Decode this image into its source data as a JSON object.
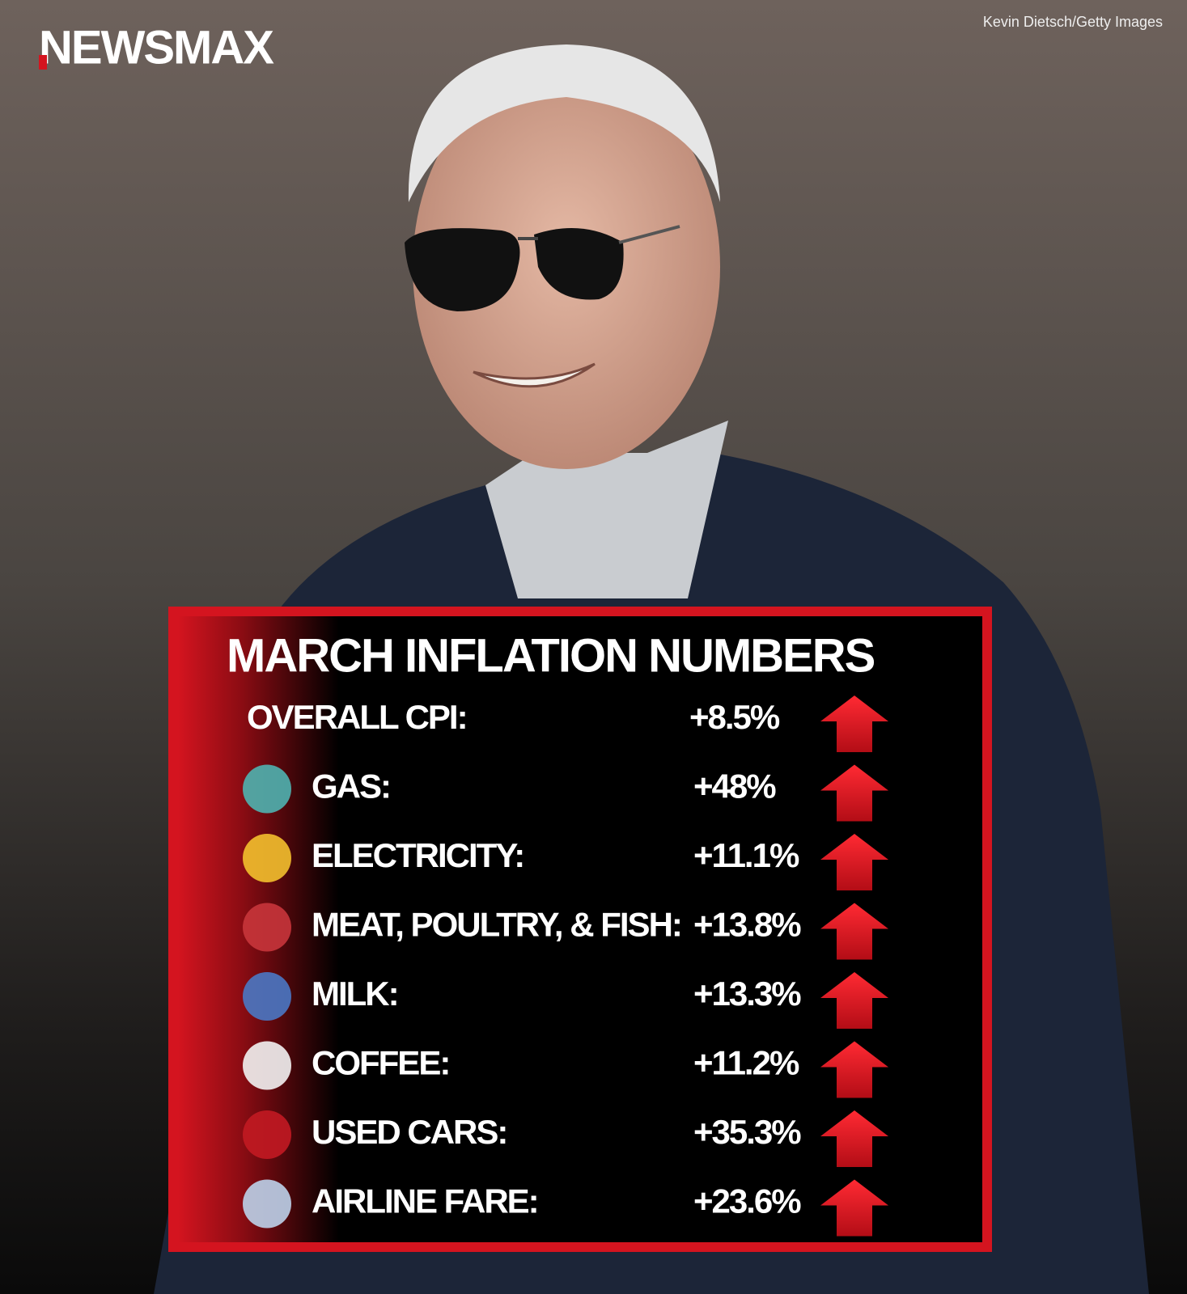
{
  "logo": "NEWSMAX",
  "credit": "Kevin Dietsch/Getty Images",
  "panel": {
    "title": "MARCH INFLATION NUMBERS",
    "rows": [
      {
        "label": "OVERALL CPI:",
        "value": "+8.5%"
      },
      {
        "label": "GAS:",
        "value": "+48%"
      },
      {
        "label": "ELECTRICITY:",
        "value": "+11.1%"
      },
      {
        "label": "MEAT, POULTRY, & FISH:",
        "value": "+13.8%"
      },
      {
        "label": "MILK:",
        "value": "+13.3%"
      },
      {
        "label": "COFFEE:",
        "value": "+11.2%"
      },
      {
        "label": "USED CARS:",
        "value": "+35.3%"
      },
      {
        "label": "AIRLINE FARE:",
        "value": "+23.6%"
      }
    ]
  }
}
